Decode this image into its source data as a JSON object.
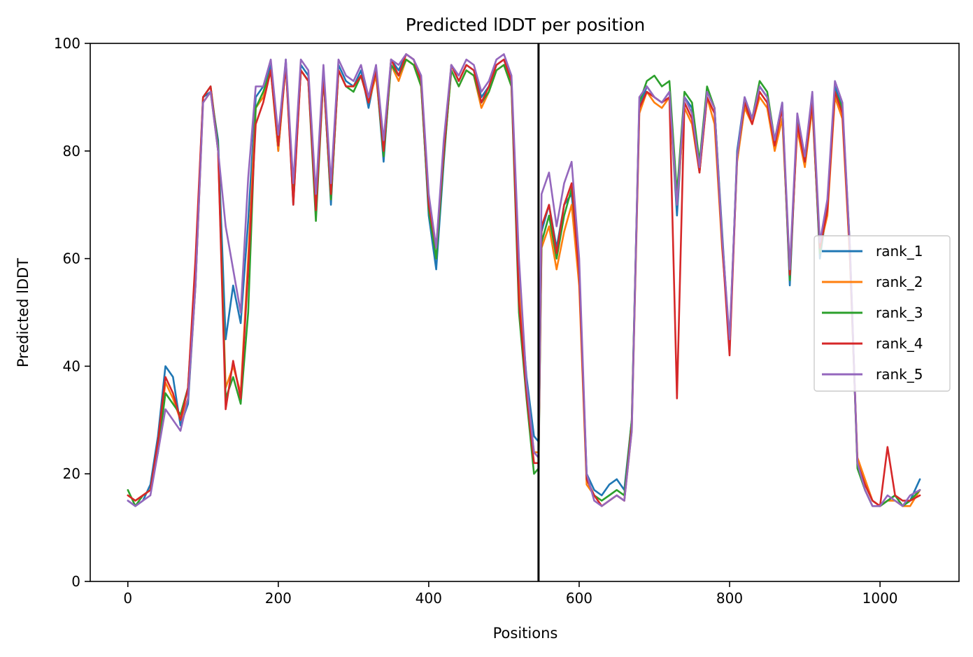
{
  "chart_data": {
    "type": "line",
    "title": "Predicted lDDT per position",
    "xlabel": "Positions",
    "ylabel": "Predicted lDDT",
    "xlim": [
      -50,
      1105
    ],
    "ylim": [
      0,
      100
    ],
    "xticks": [
      0,
      200,
      400,
      600,
      800,
      1000
    ],
    "yticks": [
      0,
      20,
      40,
      60,
      80,
      100
    ],
    "grid": false,
    "legend_position": "center-right",
    "chain_break": 546,
    "x": [
      0,
      10,
      20,
      30,
      40,
      50,
      60,
      70,
      80,
      90,
      100,
      110,
      120,
      130,
      140,
      150,
      160,
      170,
      180,
      190,
      200,
      210,
      220,
      230,
      240,
      250,
      260,
      270,
      280,
      290,
      300,
      310,
      320,
      330,
      340,
      350,
      360,
      370,
      380,
      390,
      400,
      410,
      420,
      430,
      440,
      450,
      460,
      470,
      480,
      490,
      500,
      510,
      520,
      530,
      540,
      546,
      550,
      560,
      570,
      580,
      590,
      600,
      610,
      620,
      630,
      640,
      650,
      660,
      670,
      680,
      690,
      700,
      710,
      720,
      730,
      740,
      750,
      760,
      770,
      780,
      790,
      800,
      810,
      820,
      830,
      840,
      850,
      860,
      870,
      880,
      890,
      900,
      910,
      920,
      930,
      940,
      950,
      960,
      970,
      980,
      990,
      1000,
      1010,
      1020,
      1030,
      1040,
      1053
    ],
    "series": [
      {
        "name": "rank_1",
        "color": "#1f77b4",
        "values": [
          15,
          14,
          15,
          18,
          27,
          40,
          38,
          29,
          33,
          55,
          90,
          91,
          82,
          45,
          55,
          48,
          67,
          90,
          92,
          96,
          80,
          97,
          70,
          96,
          94,
          68,
          95,
          70,
          96,
          93,
          92,
          95,
          88,
          95,
          78,
          97,
          95,
          98,
          97,
          93,
          68,
          58,
          78,
          96,
          93,
          96,
          95,
          90,
          92,
          96,
          97,
          93,
          55,
          38,
          27,
          26,
          65,
          70,
          62,
          70,
          72,
          57,
          20,
          17,
          16,
          18,
          19,
          17,
          30,
          88,
          92,
          90,
          89,
          91,
          68,
          90,
          88,
          76,
          91,
          88,
          65,
          43,
          80,
          90,
          86,
          92,
          90,
          82,
          89,
          55,
          86,
          79,
          90,
          60,
          70,
          92,
          88,
          60,
          22,
          18,
          15,
          14,
          15,
          16,
          14,
          15,
          19
        ]
      },
      {
        "name": "rank_2",
        "color": "#ff7f0e",
        "values": [
          16,
          15,
          16,
          17,
          25,
          37,
          34,
          30,
          34,
          55,
          89,
          91,
          80,
          36,
          40,
          35,
          60,
          88,
          90,
          95,
          80,
          96,
          71,
          95,
          93,
          70,
          94,
          71,
          95,
          92,
          92,
          94,
          89,
          94,
          80,
          96,
          93,
          97,
          96,
          92,
          70,
          62,
          79,
          95,
          92,
          95,
          94,
          88,
          91,
          95,
          96,
          92,
          55,
          36,
          24,
          24,
          62,
          66,
          58,
          65,
          70,
          55,
          18,
          16,
          14,
          15,
          16,
          15,
          28,
          87,
          91,
          89,
          88,
          90,
          70,
          88,
          85,
          76,
          90,
          85,
          62,
          45,
          78,
          88,
          85,
          90,
          88,
          80,
          86,
          58,
          84,
          77,
          88,
          62,
          68,
          90,
          86,
          60,
          23,
          19,
          15,
          14,
          15,
          15,
          14,
          14,
          17
        ]
      },
      {
        "name": "rank_3",
        "color": "#2ca02c",
        "values": [
          17,
          14,
          16,
          17,
          24,
          35,
          33,
          31,
          36,
          58,
          90,
          92,
          81,
          34,
          38,
          33,
          50,
          88,
          91,
          95,
          81,
          96,
          72,
          95,
          93,
          67,
          94,
          71,
          95,
          92,
          91,
          94,
          89,
          95,
          79,
          96,
          94,
          97,
          96,
          92,
          69,
          60,
          79,
          95,
          92,
          95,
          94,
          89,
          91,
          95,
          96,
          92,
          50,
          34,
          20,
          21,
          63,
          68,
          60,
          68,
          73,
          58,
          19,
          16,
          15,
          16,
          17,
          16,
          30,
          89,
          93,
          94,
          92,
          93,
          72,
          91,
          89,
          78,
          92,
          88,
          64,
          44,
          79,
          89,
          86,
          93,
          91,
          82,
          88,
          56,
          86,
          78,
          89,
          61,
          70,
          91,
          88,
          62,
          21,
          17,
          14,
          14,
          15,
          16,
          14,
          15,
          17
        ]
      },
      {
        "name": "rank_4",
        "color": "#d62728",
        "values": [
          16,
          15,
          16,
          17,
          26,
          38,
          35,
          30,
          36,
          60,
          90,
          92,
          80,
          32,
          41,
          34,
          58,
          85,
          89,
          95,
          81,
          96,
          70,
          95,
          93,
          69,
          94,
          72,
          95,
          92,
          92,
          94,
          89,
          95,
          80,
          97,
          94,
          98,
          97,
          93,
          70,
          62,
          80,
          96,
          93,
          96,
          95,
          89,
          92,
          96,
          97,
          93,
          52,
          35,
          22,
          22,
          66,
          70,
          61,
          70,
          74,
          57,
          19,
          16,
          14,
          15,
          16,
          15,
          29,
          88,
          91,
          90,
          89,
          90,
          34,
          89,
          86,
          76,
          90,
          87,
          63,
          42,
          79,
          89,
          85,
          91,
          89,
          81,
          88,
          57,
          85,
          78,
          89,
          62,
          69,
          91,
          87,
          61,
          22,
          18,
          15,
          14,
          25,
          16,
          15,
          15,
          16
        ]
      },
      {
        "name": "rank_5",
        "color": "#9467bd",
        "values": [
          15,
          14,
          15,
          16,
          24,
          32,
          30,
          28,
          34,
          55,
          89,
          91,
          80,
          66,
          58,
          50,
          75,
          92,
          92,
          97,
          83,
          97,
          74,
          97,
          95,
          72,
          96,
          74,
          97,
          94,
          93,
          96,
          90,
          96,
          82,
          97,
          96,
          98,
          97,
          94,
          72,
          62,
          82,
          96,
          94,
          97,
          96,
          91,
          93,
          97,
          98,
          94,
          60,
          37,
          24,
          23,
          72,
          76,
          66,
          74,
          78,
          60,
          20,
          15,
          14,
          15,
          16,
          15,
          28,
          90,
          92,
          90,
          89,
          91,
          70,
          90,
          87,
          77,
          91,
          88,
          64,
          45,
          79,
          90,
          86,
          92,
          90,
          82,
          89,
          58,
          87,
          79,
          91,
          63,
          71,
          93,
          89,
          62,
          22,
          17,
          14,
          14,
          16,
          15,
          14,
          16,
          17
        ]
      }
    ]
  }
}
